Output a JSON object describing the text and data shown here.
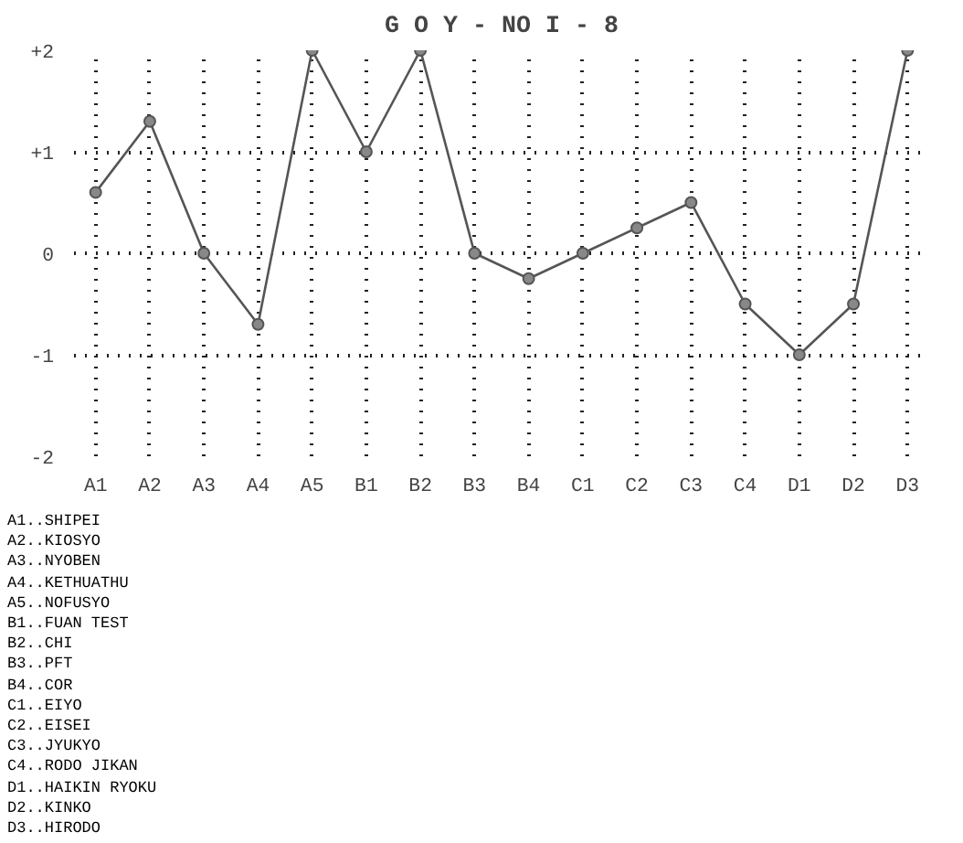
{
  "chart_data": {
    "type": "line",
    "title": "G O Y - NO I - 8",
    "categories": [
      "A1",
      "A2",
      "A3",
      "A4",
      "A5",
      "B1",
      "B2",
      "B3",
      "B4",
      "C1",
      "C2",
      "C3",
      "C4",
      "D1",
      "D2",
      "D3"
    ],
    "series": [
      {
        "color": "#555555",
        "values": [
          0.6,
          1.3,
          0,
          -0.7,
          2,
          1,
          2,
          0,
          -0.25,
          0,
          0.25,
          0.5,
          -0.5,
          -1,
          -0.5,
          2
        ]
      }
    ],
    "ylim": [
      -2,
      2
    ],
    "yticks": [
      {
        "value": -2,
        "label": "-2"
      },
      {
        "value": -1,
        "label": "-1"
      },
      {
        "value": 0,
        "label": "0"
      },
      {
        "value": 1,
        "label": "+1"
      },
      {
        "value": 2,
        "label": "+2"
      }
    ],
    "grid": true,
    "marker": "circle",
    "line_style": "solid",
    "annotations": [
      "A1..SHIPEI",
      "A2..KIOSYO",
      "A3..NYOBEN",
      "A4..KETHUATHU",
      "A5..NOFUSYO",
      "B1..FUAN TEST",
      "B2..CHI",
      "B3..PFT",
      "B4..COR",
      "C1..EIYO",
      "C2..EISEI",
      "C3..JYUKYO",
      "C4..RODO JIKAN",
      "D1..HAIKIN RYOKU",
      "D2..KINKO",
      "D3..HIRODO"
    ]
  }
}
